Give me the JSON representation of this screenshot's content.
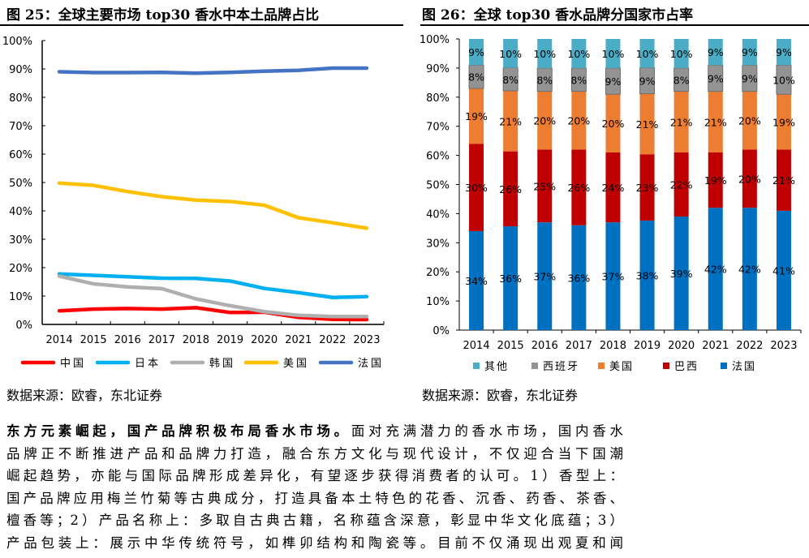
{
  "figures": [
    {
      "title": "图 25：全球主要市场 top30 香水中本土品牌占比",
      "source": "数据来源：欧睿，东北证券"
    },
    {
      "title": "图 26：全球 top30 香水品牌分国家市占率",
      "source": "数据来源：欧睿，东北证券"
    }
  ],
  "chart_data": [
    {
      "type": "line",
      "categories": [
        "2014",
        "2015",
        "2016",
        "2017",
        "2018",
        "2019",
        "2020",
        "2021",
        "2022",
        "2023"
      ],
      "yticks": [
        "0%",
        "10%",
        "20%",
        "30%",
        "40%",
        "50%",
        "60%",
        "70%",
        "80%",
        "90%",
        "100%"
      ],
      "ylim": [
        0,
        100
      ],
      "grid": false,
      "legend": "bottom",
      "series": [
        {
          "name": "中国",
          "color": "#FF0000",
          "values": [
            4.8,
            5.4,
            5.6,
            5.4,
            5.9,
            4.2,
            4.3,
            2.5,
            1.8,
            1.7
          ]
        },
        {
          "name": "日本",
          "color": "#00B0F0",
          "values": [
            17.8,
            17.3,
            16.8,
            16.3,
            16.2,
            15.3,
            12.7,
            11.2,
            9.5,
            9.8
          ]
        },
        {
          "name": "韩国",
          "color": "#AFAFAF",
          "values": [
            17.0,
            14.3,
            13.2,
            12.6,
            9.0,
            6.6,
            4.5,
            3.2,
            2.8,
            2.8
          ]
        },
        {
          "name": "美国",
          "color": "#FFC000",
          "values": [
            49.8,
            49.0,
            46.8,
            45.0,
            43.8,
            43.3,
            42.0,
            37.6,
            35.8,
            33.9
          ]
        },
        {
          "name": "法国",
          "color": "#4472C4",
          "values": [
            89.0,
            88.7,
            88.7,
            88.8,
            88.5,
            88.8,
            89.2,
            89.5,
            90.3,
            90.3
          ]
        }
      ]
    },
    {
      "type": "bar",
      "stacked": true,
      "categories": [
        "2014",
        "2015",
        "2016",
        "2017",
        "2018",
        "2019",
        "2020",
        "2021",
        "2022",
        "2023"
      ],
      "yticks": [
        "0%",
        "10%",
        "20%",
        "30%",
        "40%",
        "50%",
        "60%",
        "70%",
        "80%",
        "90%",
        "100%"
      ],
      "ylim": [
        0,
        100
      ],
      "grid": false,
      "legend": "bottom",
      "series": [
        {
          "name": "法国",
          "color": "#0070C0",
          "values": [
            34,
            36,
            37,
            36,
            37,
            38,
            39,
            42,
            42,
            41
          ]
        },
        {
          "name": "巴西",
          "color": "#C00000",
          "values": [
            30,
            26,
            25,
            26,
            24,
            23,
            22,
            19,
            20,
            21
          ]
        },
        {
          "name": "美国",
          "color": "#ED7D31",
          "values": [
            19,
            21,
            20,
            20,
            20,
            21,
            21,
            21,
            20,
            19
          ]
        },
        {
          "name": "西班牙",
          "color": "#939393",
          "values": [
            8,
            8,
            8,
            8,
            9,
            9,
            8,
            9,
            9,
            10
          ]
        },
        {
          "name": "其他",
          "color": "#4BACC6",
          "values": [
            9,
            10,
            10,
            10,
            10,
            10,
            10,
            9,
            9,
            9
          ]
        }
      ],
      "legend_order": [
        "其他",
        "西班牙",
        "美国",
        "巴西",
        "法国"
      ]
    }
  ],
  "paragraph": {
    "lead": "东方元素崛起，国产品牌积极布局香水市场。",
    "lines": [
      "面对充满潜力的香水市场，国内香水",
      "品牌正不断推进产品和品牌力打造，融合东方文化与现代设计，不仅迎合当下国潮",
      "崛起趋势，亦能与国际品牌形成差异化，有望逐步获得消费者的认可。1）香型上：",
      "国产品牌应用梅兰竹菊等古典成分，打造具备本土特色的花香、沉香、药香、茶香、",
      "檀香等；2）产品名称上：多取自古典古籍，名称蕴含深意，彰显中华文化底蕴；3）",
      "产品包装上：展示中华传统符号，如榫卯结构和陶瓷等。目前不仅涌现出观夏和闻"
    ]
  }
}
